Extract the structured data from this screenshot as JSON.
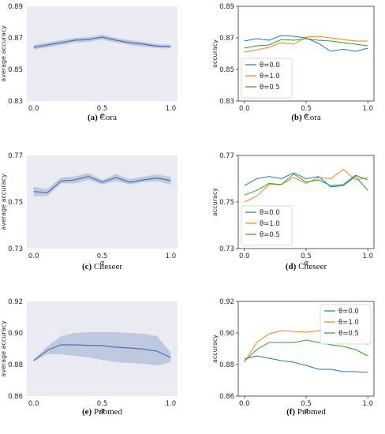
{
  "chart_data": [
    {
      "type": "line",
      "style": "mean-with-band",
      "caption_label": "(a)",
      "caption_text": "Cora",
      "ylabel": "average accuracy",
      "xlabel": "α",
      "xlim": [
        0.0,
        1.0
      ],
      "ylim": [
        0.83,
        0.89
      ],
      "xticks": [
        "0.0",
        "0.5",
        "1.0"
      ],
      "yticks": [
        "0.83",
        "0.85",
        "0.87",
        "0.89"
      ],
      "grid": false,
      "background": "#eaeaf2",
      "x": [
        0.0,
        0.1,
        0.2,
        0.3,
        0.4,
        0.5,
        0.6,
        0.7,
        0.8,
        0.9,
        1.0
      ],
      "mean": [
        0.864,
        0.8655,
        0.867,
        0.8685,
        0.869,
        0.8705,
        0.8685,
        0.867,
        0.866,
        0.8648,
        0.8645
      ],
      "lower": [
        0.8625,
        0.864,
        0.8655,
        0.867,
        0.8675,
        0.869,
        0.867,
        0.8655,
        0.8645,
        0.8635,
        0.8633
      ],
      "upper": [
        0.8655,
        0.867,
        0.8685,
        0.87,
        0.8705,
        0.872,
        0.87,
        0.8685,
        0.8675,
        0.866,
        0.8657
      ],
      "line_color": "#4c72b0",
      "band_color": "#4c72b0"
    },
    {
      "type": "line",
      "caption_label": "(b)",
      "caption_text": "Cora",
      "ylabel": "accuracy",
      "xlabel": "α",
      "xlim": [
        0.0,
        1.0
      ],
      "ylim": [
        0.83,
        0.89
      ],
      "xticks": [
        "0.0",
        "0.5",
        "1.0"
      ],
      "yticks": [
        "0.83",
        "0.85",
        "0.87",
        "0.89"
      ],
      "grid": false,
      "background": "#ffffff",
      "legend_position": "bottom-left",
      "x": [
        0.0,
        0.1,
        0.2,
        0.3,
        0.4,
        0.5,
        0.6,
        0.7,
        0.8,
        0.9,
        1.0
      ],
      "series": [
        {
          "name": "θ=0.0",
          "color": "#1f77b4",
          "values": [
            0.868,
            0.8695,
            0.8685,
            0.8715,
            0.871,
            0.87,
            0.8665,
            0.8615,
            0.8628,
            0.8615,
            0.8635
          ]
        },
        {
          "name": "θ=1.0",
          "color": "#ff7f0e",
          "values": [
            0.861,
            0.8625,
            0.864,
            0.867,
            0.866,
            0.8705,
            0.871,
            0.87,
            0.869,
            0.868,
            0.868
          ]
        },
        {
          "name": "θ=0.5",
          "color": "#2ca02c",
          "values": [
            0.8635,
            0.865,
            0.8655,
            0.869,
            0.8685,
            0.8695,
            0.8685,
            0.868,
            0.867,
            0.866,
            0.865
          ]
        }
      ]
    },
    {
      "type": "line",
      "style": "mean-with-band",
      "caption_label": "(c)",
      "caption_text": "Citeseer",
      "ylabel": "average accuracy",
      "xlabel": "α",
      "xlim": [
        0.0,
        1.0
      ],
      "ylim": [
        0.73,
        0.77
      ],
      "xticks": [
        "0.0",
        "0.5",
        "1.0"
      ],
      "yticks": [
        "0.73",
        "0.75",
        "0.77"
      ],
      "grid": false,
      "background": "#eaeaf2",
      "x": [
        0.0,
        0.1,
        0.2,
        0.3,
        0.4,
        0.5,
        0.6,
        0.7,
        0.8,
        0.9,
        1.0
      ],
      "mean": [
        0.7545,
        0.754,
        0.759,
        0.7595,
        0.761,
        0.7585,
        0.7605,
        0.7585,
        0.7595,
        0.7603,
        0.7592
      ],
      "lower": [
        0.7525,
        0.7525,
        0.758,
        0.758,
        0.7595,
        0.7575,
        0.759,
        0.7575,
        0.7585,
        0.759,
        0.7575
      ],
      "upper": [
        0.7565,
        0.7555,
        0.7605,
        0.761,
        0.7625,
        0.7595,
        0.762,
        0.7598,
        0.761,
        0.7618,
        0.7608
      ],
      "line_color": "#4c72b0",
      "band_color": "#4c72b0"
    },
    {
      "type": "line",
      "caption_label": "(d)",
      "caption_text": "Citeseer",
      "ylabel": "accuracy",
      "xlabel": "α",
      "xlim": [
        0.0,
        1.0
      ],
      "ylim": [
        0.73,
        0.77
      ],
      "xticks": [
        "0.0",
        "0.5",
        "1.0"
      ],
      "yticks": [
        "0.73",
        "0.75",
        "0.77"
      ],
      "grid": false,
      "background": "#ffffff",
      "legend_position": "bottom-left",
      "x": [
        0.0,
        0.1,
        0.2,
        0.3,
        0.4,
        0.5,
        0.6,
        0.7,
        0.8,
        0.9,
        1.0
      ],
      "series": [
        {
          "name": "θ=0.0",
          "color": "#1f77b4",
          "values": [
            0.757,
            0.76,
            0.761,
            0.76,
            0.7625,
            0.76,
            0.761,
            0.7565,
            0.757,
            0.761,
            0.755
          ]
        },
        {
          "name": "θ=1.0",
          "color": "#ff7f0e",
          "values": [
            0.75,
            0.7525,
            0.7575,
            0.7575,
            0.7605,
            0.758,
            0.7605,
            0.76,
            0.764,
            0.7595,
            0.7605
          ]
        },
        {
          "name": "θ=0.5",
          "color": "#2ca02c",
          "values": [
            0.753,
            0.755,
            0.758,
            0.7575,
            0.762,
            0.7585,
            0.7595,
            0.757,
            0.7575,
            0.7615,
            0.7595
          ]
        }
      ]
    },
    {
      "type": "line",
      "style": "mean-with-band",
      "caption_label": "(e)",
      "caption_text": "Pubmed",
      "ylabel": "average accuracy",
      "xlabel": "α",
      "xlim": [
        0.0,
        1.0
      ],
      "ylim": [
        0.86,
        0.92
      ],
      "xticks": [
        "0.0",
        "0.5",
        "1.0"
      ],
      "yticks": [
        "0.86",
        "0.88",
        "0.90",
        "0.92"
      ],
      "grid": false,
      "background": "#eaeaf2",
      "x": [
        0.0,
        0.1,
        0.2,
        0.3,
        0.4,
        0.5,
        0.6,
        0.7,
        0.8,
        0.9,
        1.0
      ],
      "mean": [
        0.8825,
        0.889,
        0.8925,
        0.8925,
        0.8922,
        0.892,
        0.891,
        0.8905,
        0.8898,
        0.8885,
        0.8845
      ],
      "lower": [
        0.882,
        0.8865,
        0.8865,
        0.8855,
        0.8845,
        0.883,
        0.8815,
        0.881,
        0.8805,
        0.8795,
        0.8815
      ],
      "upper": [
        0.883,
        0.8915,
        0.898,
        0.9,
        0.9005,
        0.9005,
        0.9005,
        0.9,
        0.8995,
        0.898,
        0.8875
      ],
      "line_color": "#4c72b0",
      "band_color": "#4c72b0"
    },
    {
      "type": "line",
      "caption_label": "(f)",
      "caption_text": "Pubmed",
      "ylabel": "accuracy",
      "xlabel": "α",
      "xlim": [
        0.0,
        1.0
      ],
      "ylim": [
        0.86,
        0.92
      ],
      "xticks": [
        "0.0",
        "0.5",
        "1.0"
      ],
      "yticks": [
        "0.86",
        "0.88",
        "0.90",
        "0.92"
      ],
      "grid": false,
      "background": "#ffffff",
      "legend_position": "top-right",
      "x": [
        0.0,
        0.1,
        0.2,
        0.3,
        0.4,
        0.5,
        0.6,
        0.7,
        0.8,
        0.9,
        1.0
      ],
      "series": [
        {
          "name": "θ=0.0",
          "color": "#1f77b4",
          "values": [
            0.8835,
            0.8855,
            0.884,
            0.8825,
            0.8815,
            0.8795,
            0.877,
            0.877,
            0.8755,
            0.8755,
            0.875
          ]
        },
        {
          "name": "θ=1.0",
          "color": "#ff7f0e",
          "values": [
            0.8815,
            0.894,
            0.8995,
            0.9015,
            0.901,
            0.9005,
            0.9015,
            0.901,
            0.9005,
            0.8995,
            0.8925
          ]
        },
        {
          "name": "θ=0.5",
          "color": "#2ca02c",
          "values": [
            0.882,
            0.8895,
            0.894,
            0.894,
            0.894,
            0.8955,
            0.894,
            0.8925,
            0.8915,
            0.8895,
            0.8855
          ]
        }
      ]
    }
  ]
}
